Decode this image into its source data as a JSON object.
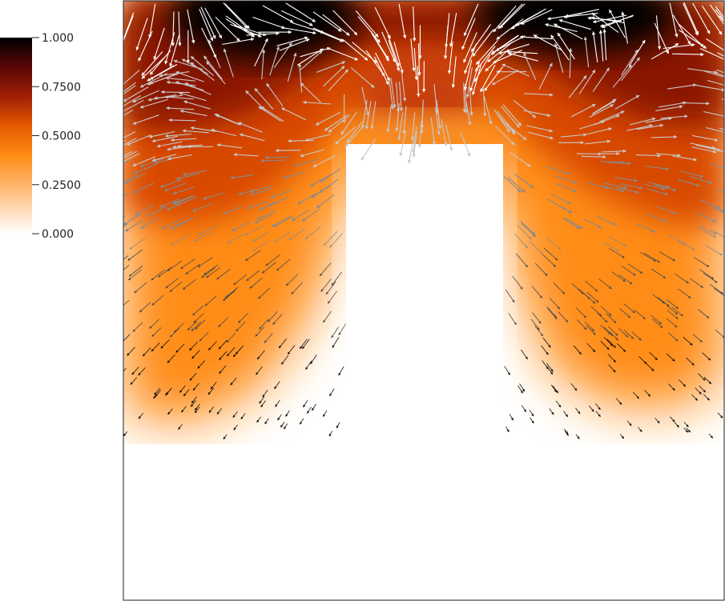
{
  "colorbar": {
    "ticks": [
      "1.000",
      "0.7500",
      "0.5000",
      "0.2500",
      "0.000"
    ],
    "tick_values": [
      1.0,
      0.75,
      0.5,
      0.25,
      0.0
    ],
    "range": [
      0.0,
      1.0
    ],
    "colormap": [
      {
        "value": 0.0,
        "color": "#ffffff"
      },
      {
        "value": 0.25,
        "color": "#ffb36a"
      },
      {
        "value": 0.4,
        "color": "#ff8c14"
      },
      {
        "value": 0.55,
        "color": "#e45a00"
      },
      {
        "value": 0.7,
        "color": "#a01e06"
      },
      {
        "value": 0.85,
        "color": "#5a0606"
      },
      {
        "value": 1.0,
        "color": "#000000"
      }
    ]
  },
  "plot": {
    "background": "#ffffff",
    "frame_color": "#222222",
    "glyph_colors": [
      "#ffffff",
      "#c8c8c8",
      "#8a8a8a",
      "#4a4a4a",
      "#111111"
    ]
  }
}
